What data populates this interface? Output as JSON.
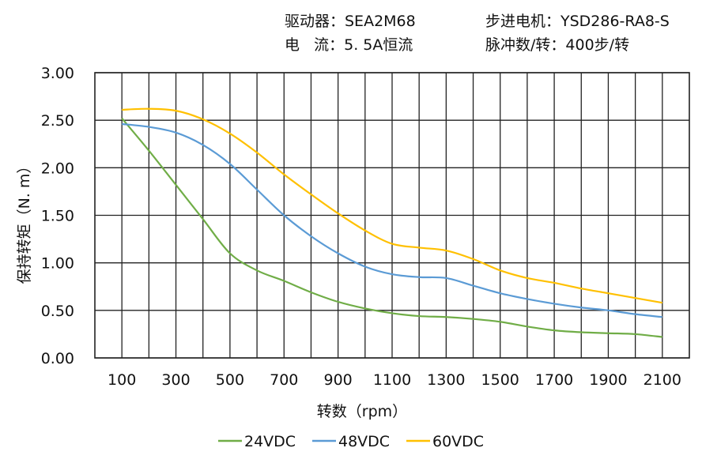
{
  "header": {
    "driver": "驱动器：SEA2M68",
    "current": "电   流：5. 5A恒流",
    "motor": "步进电机：YSD286-RA8-S",
    "pulses": "脉冲数/转：400步/转"
  },
  "chart_data": {
    "type": "line",
    "xlabel": "转数（rpm）",
    "ylabel": "保持转矩（N. m）",
    "xlim": [
      0,
      2200
    ],
    "ylim": [
      0,
      3
    ],
    "x_ticks": [
      "100",
      "300",
      "500",
      "700",
      "900",
      "1100",
      "1300",
      "1500",
      "1700",
      "1900",
      "2100"
    ],
    "y_ticks": [
      "0.00",
      "0.50",
      "1.00",
      "1.50",
      "2.00",
      "2.50",
      "3.00"
    ],
    "grid": true,
    "legend": "bottom",
    "x": [
      100,
      200,
      300,
      400,
      500,
      600,
      700,
      800,
      900,
      1000,
      1100,
      1200,
      1300,
      1400,
      1500,
      1600,
      1700,
      1800,
      1900,
      2000,
      2100
    ],
    "series": [
      {
        "name": "24VDC",
        "color": "#70ad47",
        "values": [
          2.52,
          2.18,
          1.82,
          1.46,
          1.1,
          0.92,
          0.81,
          0.69,
          0.59,
          0.52,
          0.47,
          0.44,
          0.43,
          0.41,
          0.38,
          0.33,
          0.29,
          0.27,
          0.26,
          0.25,
          0.22
        ]
      },
      {
        "name": "48VDC",
        "color": "#5b9bd5",
        "values": [
          2.46,
          2.43,
          2.37,
          2.24,
          2.04,
          1.77,
          1.5,
          1.28,
          1.1,
          0.96,
          0.88,
          0.85,
          0.84,
          0.76,
          0.68,
          0.62,
          0.57,
          0.53,
          0.5,
          0.46,
          0.43
        ]
      },
      {
        "name": "60VDC",
        "color": "#ffc000",
        "values": [
          2.61,
          2.62,
          2.6,
          2.51,
          2.36,
          2.16,
          1.93,
          1.72,
          1.52,
          1.34,
          1.2,
          1.16,
          1.13,
          1.04,
          0.92,
          0.84,
          0.79,
          0.73,
          0.68,
          0.63,
          0.58
        ]
      }
    ]
  }
}
